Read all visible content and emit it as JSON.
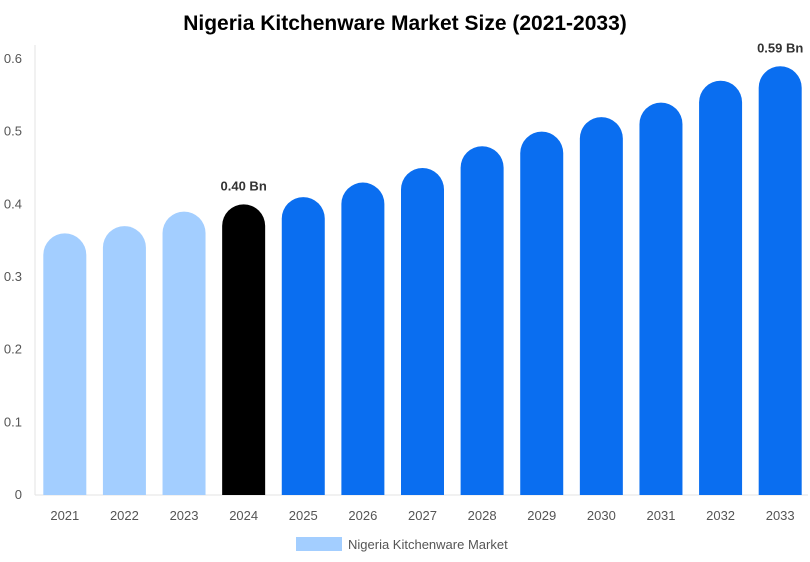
{
  "chart_data": {
    "type": "bar",
    "title": "Nigeria Kitchenware Market Size (2021-2033)",
    "xlabel": "",
    "ylabel": "",
    "categories": [
      "2021",
      "2022",
      "2023",
      "2024",
      "2025",
      "2026",
      "2027",
      "2028",
      "2029",
      "2030",
      "2031",
      "2032",
      "2033"
    ],
    "series": [
      {
        "name": "Nigeria Kitchenware Market",
        "values": [
          0.36,
          0.37,
          0.39,
          0.4,
          0.41,
          0.43,
          0.45,
          0.48,
          0.5,
          0.52,
          0.54,
          0.57,
          0.59
        ]
      }
    ],
    "ylim": [
      0,
      0.6
    ],
    "yticks": [
      "0",
      "0.1",
      "0.2",
      "0.3",
      "0.4",
      "0.5",
      "0.6"
    ],
    "data_labels": [
      {
        "category": "2024",
        "text": "0.40 Bn"
      },
      {
        "category": "2033",
        "text": "0.59 Bn"
      }
    ],
    "bar_colors": {
      "historical": "#a3ceff",
      "base_year": "#000000",
      "forecast": "#0a6ef0"
    },
    "base_year": "2024",
    "legend": {
      "position": "bottom",
      "color": "#a3ceff"
    },
    "grid": false
  }
}
